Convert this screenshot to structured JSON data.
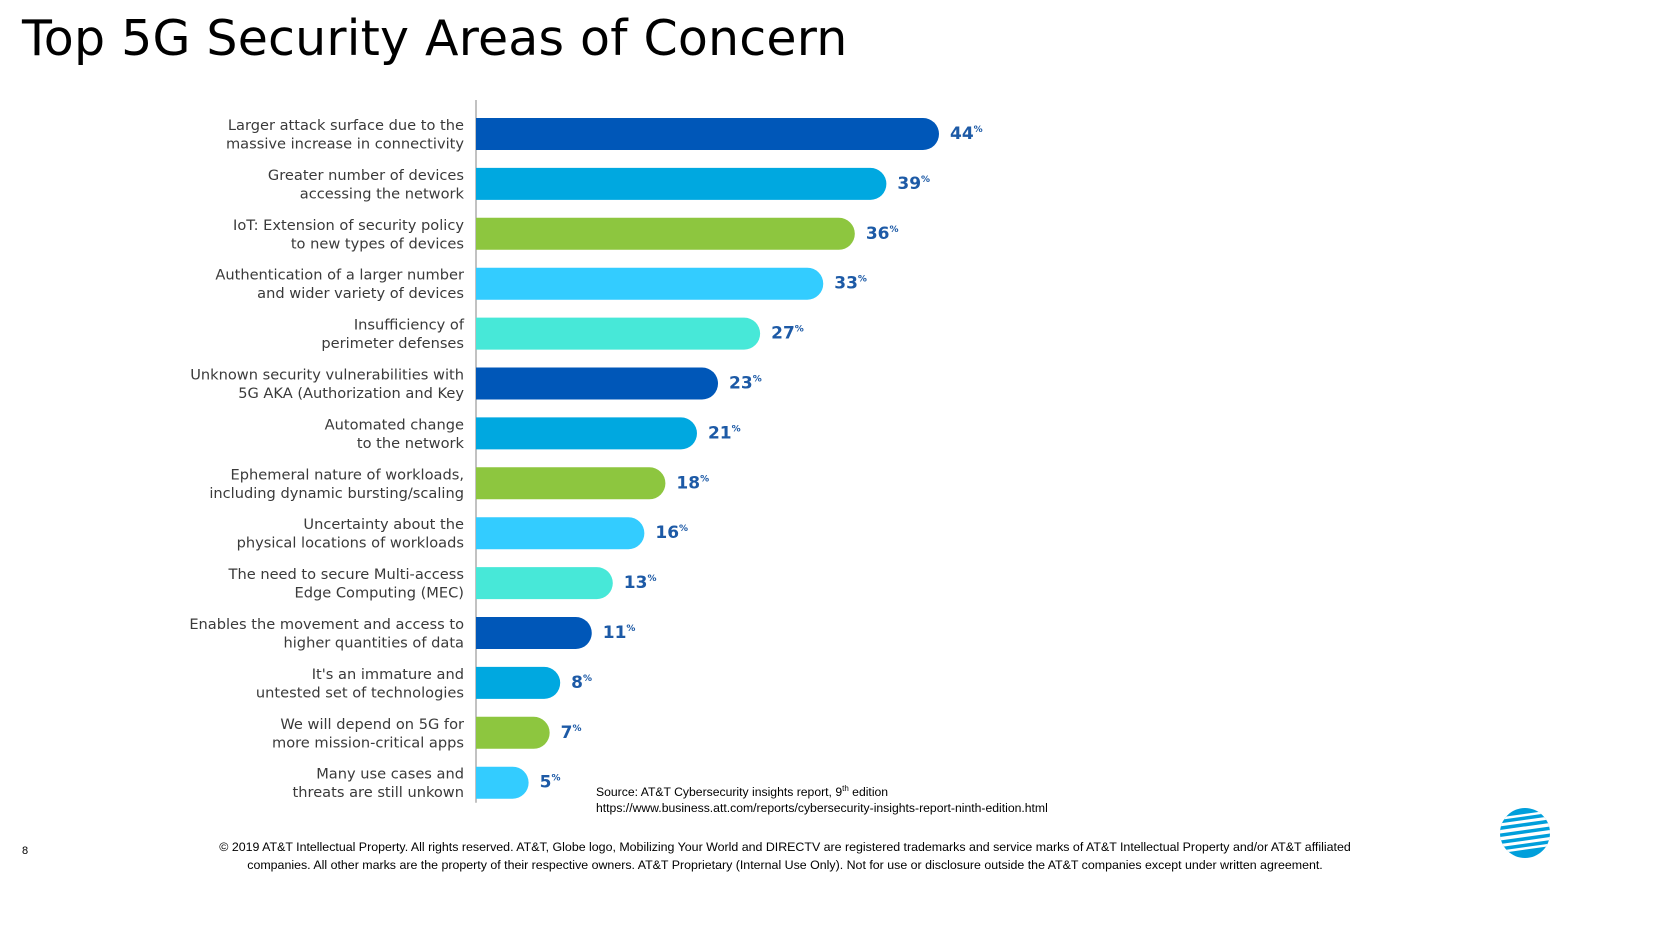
{
  "title": "Top 5G Security Areas of Concern",
  "source": {
    "line1_prefix": "Source: AT&T Cybersecurity insights report, 9",
    "line1_sup": "th",
    "line1_suffix": " edition",
    "line2": "https://www.business.att.com/reports/cybersecurity-insights-report-ninth-edition.html"
  },
  "page_number": "8",
  "footer": {
    "line1": "© 2019 AT&T Intellectual Property. All rights reserved. AT&T, Globe logo, Mobilizing Your World and DIRECTV are registered trademarks and service marks of AT&T Intellectual Property and/or AT&T affiliated",
    "line2": "companies. All other marks are the property of their respective owners. AT&T Proprietary (Internal Use Only). Not for use or disclosure outside the AT&T companies except under written agreement."
  },
  "logo_icon": "att-globe-icon",
  "colors": {
    "dark_blue": "#0057b8",
    "blue": "#00a8e0",
    "green": "#8dc63f",
    "sky": "#33ccff",
    "cyan": "#47e8d8",
    "value_text": "#1d5aa6"
  },
  "chart_data": {
    "type": "bar",
    "orientation": "horizontal",
    "value_suffix": "%",
    "xlim": [
      0,
      44
    ],
    "categories": [
      [
        "Larger attack surface due to the",
        "massive increase in connectivity"
      ],
      [
        "Greater number of devices",
        "accessing the network"
      ],
      [
        "IoT: Extension of security policy",
        "to new types of devices"
      ],
      [
        "Authentication of a larger number",
        "and wider variety of devices"
      ],
      [
        "Insufficiency of",
        "perimeter defenses"
      ],
      [
        "Unknown security vulnerabilities with",
        "5G AKA (Authorization and Key"
      ],
      [
        "Automated change",
        "to the network"
      ],
      [
        "Ephemeral nature of workloads,",
        "including dynamic bursting/scaling"
      ],
      [
        "Uncertainty about the",
        "physical locations of workloads"
      ],
      [
        "The need to secure Multi-access",
        "Edge Computing (MEC)"
      ],
      [
        "Enables the movement and access to",
        "higher quantities of data"
      ],
      [
        "It's an immature and",
        "untested set of technologies"
      ],
      [
        "We will depend on 5G for",
        "more mission-critical apps"
      ],
      [
        "Many use cases and",
        "threats are still unkown"
      ]
    ],
    "values": [
      44,
      39,
      36,
      33,
      27,
      23,
      21,
      18,
      16,
      13,
      11,
      8,
      7,
      5
    ],
    "bar_colors": [
      "#0057b8",
      "#00a8e0",
      "#8dc63f",
      "#33ccff",
      "#47e8d8",
      "#0057b8",
      "#00a8e0",
      "#8dc63f",
      "#33ccff",
      "#47e8d8",
      "#0057b8",
      "#00a8e0",
      "#8dc63f",
      "#33ccff"
    ]
  }
}
